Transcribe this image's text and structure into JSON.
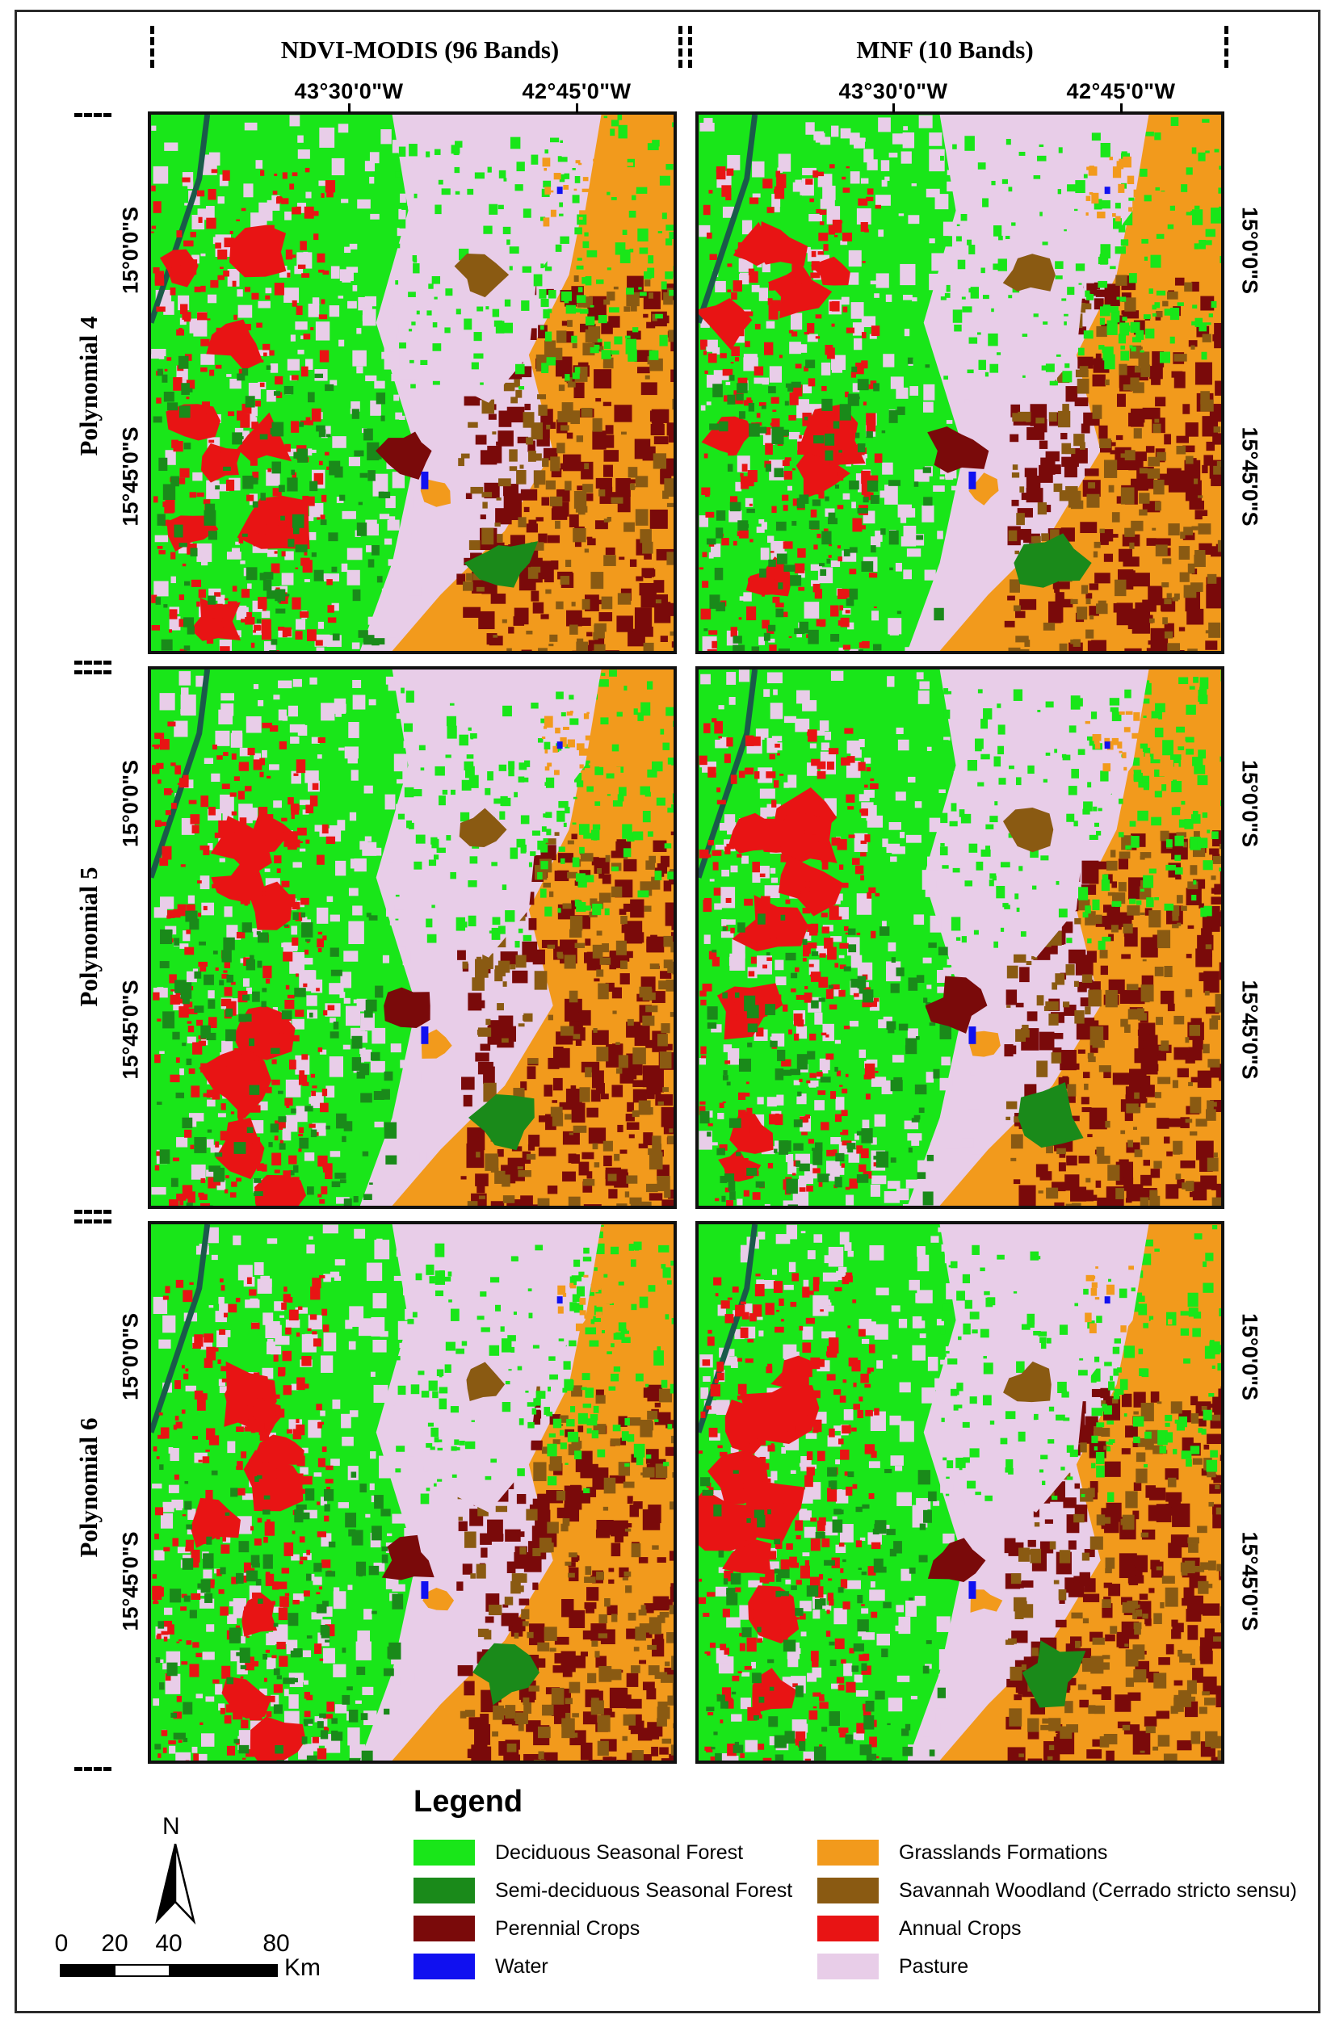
{
  "columns": {
    "left": {
      "title": "NDVI-MODIS (96 Bands)"
    },
    "right": {
      "title": "MNF (10 Bands)"
    }
  },
  "longitudes": [
    "43°30'0\"W",
    "42°45'0\"W"
  ],
  "latitudes": [
    "15°0'0\"S",
    "15°45'0\"S"
  ],
  "rows": [
    {
      "title": "Polynomial 4"
    },
    {
      "title": "Polynomial 5"
    },
    {
      "title": "Polynomial 6"
    }
  ],
  "legend": {
    "title": "Legend",
    "items": [
      {
        "label": "Deciduous Seasonal Forest",
        "color": "#19e619"
      },
      {
        "label": "Semi-deciduous Seasonal Forest",
        "color": "#1a8a1a"
      },
      {
        "label": "Perennial Crops",
        "color": "#7a0a0a"
      },
      {
        "label": "Water",
        "color": "#1010f0"
      },
      {
        "label": "Grasslands Formations",
        "color": "#f29a1c"
      },
      {
        "label": "Savannah Woodland (Cerrado stricto sensu)",
        "color": "#8a5a12"
      },
      {
        "label": "Annual Crops",
        "color": "#e81414"
      },
      {
        "label": "Pasture",
        "color": "#e8cde8"
      }
    ]
  },
  "north": {
    "letter": "N"
  },
  "scale": {
    "ticks": [
      "0",
      "20",
      "40",
      "80"
    ],
    "unit": "Km"
  }
}
